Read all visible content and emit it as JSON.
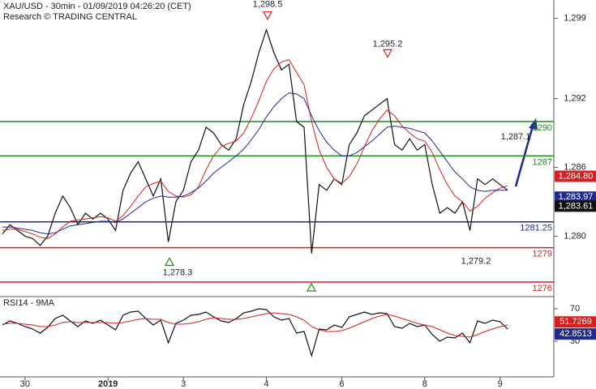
{
  "chart_data": [
    {
      "type": "line",
      "title": "XAU/USD - 30min - 01/09/2019 04:26:20 (CET)",
      "subtitle": "Research © TRADING CENTRAL",
      "ylim": [
        1274.8,
        1300.6
      ],
      "yticks": [
        {
          "value": 1299,
          "label": "1,299"
        },
        {
          "value": 1292,
          "label": "1,292"
        },
        {
          "value": 1286,
          "label": "1,286"
        },
        {
          "value": 1280,
          "label": "1,280"
        }
      ],
      "series": [
        {
          "name": "XAU/USD",
          "color": "#111111",
          "values": [
            1280.2,
            1281.0,
            1280.5,
            1280.0,
            1279.8,
            1279.2,
            1280.0,
            1282.0,
            1283.5,
            1282.5,
            1281.0,
            1282.0,
            1281.5,
            1282.0,
            1281.5,
            1280.5,
            1284.0,
            1285.5,
            1286.5,
            1285.0,
            1283.5,
            1285.0,
            1279.5,
            1283.0,
            1284.0,
            1286.5,
            1287.5,
            1289.5,
            1289.0,
            1288.0,
            1287.5,
            1288.5,
            1291.5,
            1293.5,
            1296.0,
            1298.0,
            1296.0,
            1294.5,
            1295.0,
            1290.0,
            1289.5,
            1278.5,
            1284.5,
            1284.0,
            1285.0,
            1284.5,
            1288.0,
            1289.0,
            1290.5,
            1291.0,
            1291.5,
            1292.0,
            1288.0,
            1287.5,
            1288.5,
            1287.5,
            1288.0,
            1284.5,
            1282.0,
            1282.5,
            1282.0,
            1283.0,
            1280.5,
            1285.0,
            1284.5,
            1285.0,
            1284.5,
            1284.0
          ]
        },
        {
          "color": "#d42020",
          "values": [
            1280.5,
            1280.6,
            1280.6,
            1280.4,
            1280.2,
            1279.9,
            1279.8,
            1280.2,
            1280.8,
            1281.3,
            1281.4,
            1281.5,
            1281.6,
            1281.7,
            1281.6,
            1281.3,
            1281.8,
            1282.6,
            1283.5,
            1284.3,
            1284.6,
            1284.8,
            1283.9,
            1283.5,
            1283.4,
            1283.6,
            1284.3,
            1285.8,
            1287.0,
            1287.8,
            1288.1,
            1288.3,
            1289.0,
            1290.3,
            1291.8,
            1293.5,
            1294.6,
            1295.2,
            1295.4,
            1294.3,
            1293.2,
            1290.0,
            1287.5,
            1286.0,
            1285.0,
            1284.6,
            1285.2,
            1286.3,
            1287.8,
            1289.2,
            1290.2,
            1291.0,
            1290.5,
            1289.6,
            1289.0,
            1288.5,
            1288.3,
            1287.3,
            1285.8,
            1284.5,
            1283.5,
            1283.0,
            1282.2,
            1282.6,
            1283.3,
            1283.8,
            1284.2,
            1284.4
          ]
        },
        {
          "color": "#1f2a8c",
          "values": [
            1280.8,
            1280.8,
            1280.7,
            1280.6,
            1280.5,
            1280.3,
            1280.2,
            1280.3,
            1280.6,
            1280.9,
            1281.0,
            1281.1,
            1281.2,
            1281.3,
            1281.3,
            1281.2,
            1281.5,
            1282.0,
            1282.5,
            1283.0,
            1283.3,
            1283.5,
            1283.4,
            1283.4,
            1283.5,
            1283.8,
            1284.2,
            1284.8,
            1285.5,
            1286.0,
            1286.5,
            1287.0,
            1287.6,
            1288.4,
            1289.3,
            1290.4,
            1291.3,
            1292.0,
            1292.5,
            1292.4,
            1292.0,
            1290.5,
            1289.2,
            1288.2,
            1287.5,
            1287.0,
            1287.0,
            1287.3,
            1287.8,
            1288.3,
            1288.9,
            1289.5,
            1289.6,
            1289.5,
            1289.4,
            1289.2,
            1289.0,
            1288.3,
            1287.4,
            1286.5,
            1285.6,
            1285.0,
            1284.3,
            1284.0,
            1283.9,
            1284.0,
            1284.0,
            1284.0
          ]
        }
      ],
      "levels": [
        {
          "value": 1290,
          "color": "#1a8a1a"
        },
        {
          "value": 1287,
          "color": "#1a8a1a"
        },
        {
          "value": 1281.25,
          "color": "#1f2a8c"
        },
        {
          "value": 1279,
          "color": "#d42020"
        },
        {
          "value": 1276,
          "color": "#d42020"
        }
      ],
      "annotations": [
        {
          "value": 1298.5,
          "label": "1,298.5"
        },
        {
          "value": 1295.2,
          "label": "1,295.2"
        },
        {
          "value": 1287.1,
          "label": "1,287.1"
        },
        {
          "value": 1279.2,
          "label": "1,279.2"
        },
        {
          "value": 1278.3,
          "label": "1,278.3"
        }
      ],
      "price_tags": [
        {
          "value": 1284.8,
          "label": "1,284.80",
          "color": "#d42020"
        },
        {
          "value": 1283.97,
          "label": "1,283.97",
          "color": "#1f2a8c"
        },
        {
          "value": 1283.61,
          "label": "1,283.61",
          "color": "#111111"
        }
      ]
    },
    {
      "type": "line",
      "title": "RSI14 - 9MA",
      "ylim": [
        -14,
        83
      ],
      "yticks": [
        70,
        30
      ],
      "categories": [
        null,
        null,
        null,
        "30",
        null,
        null,
        null,
        null,
        null,
        null,
        null,
        null,
        null,
        null,
        "2019",
        null,
        null,
        null,
        null,
        null,
        null,
        null,
        null,
        null,
        "3",
        null,
        null,
        null,
        null,
        null,
        null,
        null,
        null,
        null,
        null,
        "4",
        null,
        null,
        null,
        null,
        null,
        null,
        null,
        null,
        null,
        "6",
        null,
        null,
        null,
        null,
        null,
        null,
        null,
        null,
        null,
        null,
        "8",
        null,
        null,
        null,
        null,
        null,
        null,
        null,
        null,
        null,
        "9",
        null
      ],
      "series": [
        {
          "color": "#111111",
          "values": [
            50,
            55,
            52,
            48,
            45,
            40,
            47,
            58,
            62,
            55,
            48,
            55,
            52,
            56,
            50,
            44,
            62,
            66,
            67,
            58,
            50,
            56,
            28,
            52,
            56,
            62,
            63,
            66,
            60,
            55,
            53,
            58,
            65,
            67,
            70,
            69,
            60,
            56,
            58,
            40,
            42,
            12,
            45,
            44,
            50,
            47,
            60,
            63,
            66,
            63,
            65,
            64,
            48,
            46,
            52,
            48,
            50,
            38,
            30,
            35,
            34,
            40,
            28,
            55,
            52,
            56,
            54,
            45
          ]
        },
        {
          "color": "#d42020",
          "values": [
            51,
            52,
            52,
            51,
            50,
            48,
            48,
            50,
            53,
            54,
            53,
            53,
            53,
            53,
            53,
            52,
            53,
            55,
            57,
            58,
            57,
            57,
            53,
            51,
            51,
            52,
            54,
            57,
            59,
            58,
            57,
            57,
            58,
            60,
            62,
            64,
            65,
            64,
            63,
            60,
            56,
            48,
            44,
            42,
            42,
            43,
            46,
            50,
            54,
            58,
            61,
            63,
            61,
            58,
            55,
            52,
            50,
            48,
            44,
            40,
            37,
            36,
            35,
            38,
            42,
            45,
            48,
            50
          ]
        }
      ],
      "price_tags": [
        {
          "value": 51.7269,
          "label": "51.7269",
          "color": "#d42020"
        },
        {
          "value": 42.8513,
          "label": "42.8513",
          "color": "#1f2a8c"
        }
      ]
    }
  ]
}
